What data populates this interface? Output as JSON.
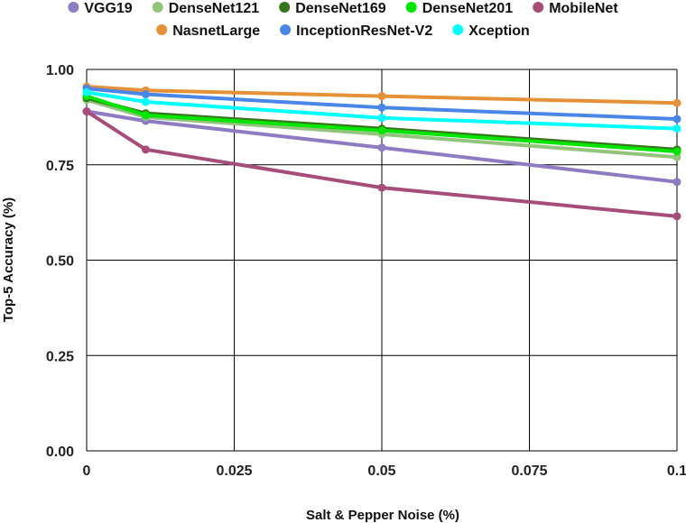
{
  "chart_data": {
    "type": "line",
    "title": "",
    "xlabel": "Salt & Pepper Noise (%)",
    "ylabel": "Top-5 Accuracy  (%)",
    "x": [
      0,
      0.01,
      0.05,
      0.1
    ],
    "xticks": [
      0,
      0.025,
      0.05,
      0.075,
      0.1
    ],
    "xtick_labels": [
      "0",
      "0.025",
      "0.05",
      "0.075",
      "0.1"
    ],
    "yticks": [
      0,
      0.25,
      0.5,
      0.75,
      1.0
    ],
    "ytick_labels": [
      "0.00",
      "0.25",
      "0.50",
      "0.75",
      "1.00"
    ],
    "xlim": [
      0,
      0.1
    ],
    "ylim": [
      0,
      1.0
    ],
    "grid": true,
    "legend_position": "top",
    "series": [
      {
        "name": "VGG19",
        "color": "#8e7cc3",
        "values": [
          0.89,
          0.865,
          0.795,
          0.705
        ]
      },
      {
        "name": "DenseNet121",
        "color": "#93c47d",
        "values": [
          0.92,
          0.875,
          0.83,
          0.77
        ]
      },
      {
        "name": "DenseNet169",
        "color": "#38761d",
        "values": [
          0.925,
          0.885,
          0.845,
          0.79
        ]
      },
      {
        "name": "DenseNet201",
        "color": "#00e600",
        "values": [
          0.93,
          0.88,
          0.84,
          0.785
        ]
      },
      {
        "name": "MobileNet",
        "color": "#a64d79",
        "values": [
          0.89,
          0.79,
          0.69,
          0.615
        ]
      },
      {
        "name": "NasnetLarge",
        "color": "#e69138",
        "values": [
          0.955,
          0.945,
          0.93,
          0.912
        ]
      },
      {
        "name": "InceptionResNet-V2",
        "color": "#4a86e8",
        "values": [
          0.95,
          0.935,
          0.9,
          0.87
        ]
      },
      {
        "name": "Xception",
        "color": "#00ffff",
        "values": [
          0.94,
          0.915,
          0.873,
          0.845
        ]
      }
    ]
  }
}
